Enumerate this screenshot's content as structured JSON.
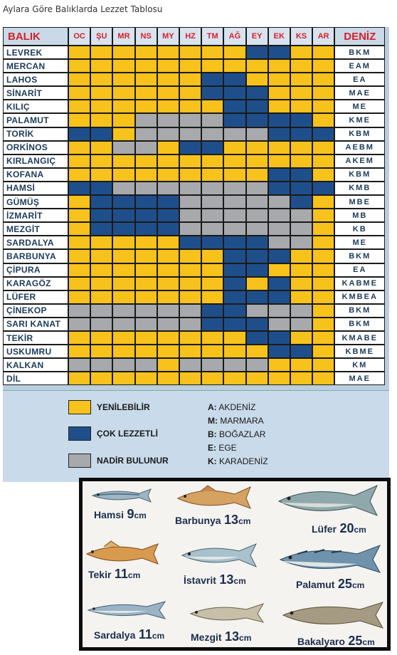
{
  "page_title": "Aylara Göre Balıklarda Lezzet Tablosu",
  "table": {
    "header_first": "BALIK",
    "months": [
      "OC",
      "ŞU",
      "MR",
      "NS",
      "MY",
      "HZ",
      "TM",
      "AĞ",
      "EY",
      "EK",
      "KS",
      "AR"
    ],
    "header_last": "DENİZ",
    "rows": [
      {
        "name": "LEVREK",
        "cells": "yyyyyyyybbyy",
        "seas": "BKM"
      },
      {
        "name": "MERCAN",
        "cells": "yyyyyyyyyyyy",
        "seas": "EAM"
      },
      {
        "name": "LAHOS",
        "cells": "yyyyyybbyyyy",
        "seas": "EA"
      },
      {
        "name": "SİNARİT",
        "cells": "yyyyyybbbyyy",
        "seas": "MAE"
      },
      {
        "name": "KILIÇ",
        "cells": "yyyyyyybbyyy",
        "seas": "ME"
      },
      {
        "name": "PALAMUT",
        "cells": "yyyggggbbbby",
        "seas": "KME"
      },
      {
        "name": "TORİK",
        "cells": "bbyggggggbbb",
        "seas": "KBM"
      },
      {
        "name": "ORKİNOS",
        "cells": "yyggybbyyyyy",
        "seas": "AEBM"
      },
      {
        "name": "KIRLANGIÇ",
        "cells": "yyyyyyyyyyyy",
        "seas": "AKEM"
      },
      {
        "name": "KOFANA",
        "cells": "yyyyyyyyybby",
        "seas": "KBM"
      },
      {
        "name": "HAMSİ",
        "cells": "bbgggggggbbb",
        "seas": "KMB"
      },
      {
        "name": "GÜMÜŞ",
        "cells": "ybbbbgggggby",
        "seas": "MBE"
      },
      {
        "name": "İZMARİT",
        "cells": "ybbbbggggggy",
        "seas": "MB"
      },
      {
        "name": "MEZGİT",
        "cells": "ybbbbggggggy",
        "seas": "KB"
      },
      {
        "name": "SARDALYA",
        "cells": "yyyyybbbbggy",
        "seas": "ME"
      },
      {
        "name": "BARBUNYA",
        "cells": "yyyyyyybbbyy",
        "seas": "BKM"
      },
      {
        "name": "ÇİPURA",
        "cells": "yyyyyyybbyyy",
        "seas": "EA"
      },
      {
        "name": "KARAGÖZ",
        "cells": "yyyyyyybybyy",
        "seas": "KABME"
      },
      {
        "name": "LÜFER",
        "cells": "yyyyyyybbbyy",
        "seas": "KMBEA"
      },
      {
        "name": "ÇİNEKOP",
        "cells": "ggggggbbgggy",
        "seas": "BKM"
      },
      {
        "name": "SARI KANAT",
        "cells": "ggggggbbbggy",
        "seas": "BKM"
      },
      {
        "name": "TEKİR",
        "cells": "yyyyyyyybbyy",
        "seas": "KMABE"
      },
      {
        "name": "USKUMRU",
        "cells": "yyyyyyyyybby",
        "seas": "KBME"
      },
      {
        "name": "KALKAN",
        "cells": "ggggyggggyyy",
        "seas": "KM"
      },
      {
        "name": "DİL",
        "cells": "yyyyyyyyyyyy",
        "seas": "MAE"
      }
    ]
  },
  "legend": {
    "items": [
      {
        "label": "YENİLEBİLİR",
        "color": "#f7c21b"
      },
      {
        "label": "ÇOK LEZZETLİ",
        "color": "#1f4f8b"
      },
      {
        "label": "NADİR BULUNUR",
        "color": "#a7a9ac"
      }
    ],
    "seas": [
      {
        "code": "A:",
        "name": "AKDENİZ"
      },
      {
        "code": "M:",
        "name": "MARMARA"
      },
      {
        "code": "B:",
        "name": "BOĞAZLAR"
      },
      {
        "code": "E:",
        "name": "EGE"
      },
      {
        "code": "K:",
        "name": "KARADENİZ"
      }
    ]
  },
  "fish_sizes": [
    {
      "name": "Hamsi",
      "size": "9",
      "unit": "cm"
    },
    {
      "name": "Barbunya",
      "size": "13",
      "unit": "cm"
    },
    {
      "name": "Lüfer",
      "size": "20",
      "unit": "cm"
    },
    {
      "name": "Tekir",
      "size": "11",
      "unit": "cm"
    },
    {
      "name": "İstavrit",
      "size": "13",
      "unit": "cm"
    },
    {
      "name": "Palamut",
      "size": "25",
      "unit": "cm"
    },
    {
      "name": "Sardalya",
      "size": "11",
      "unit": "cm"
    },
    {
      "name": "Mezgit",
      "size": "13",
      "unit": "cm"
    },
    {
      "name": "Bakalyaro",
      "size": "25",
      "unit": "cm"
    }
  ]
}
